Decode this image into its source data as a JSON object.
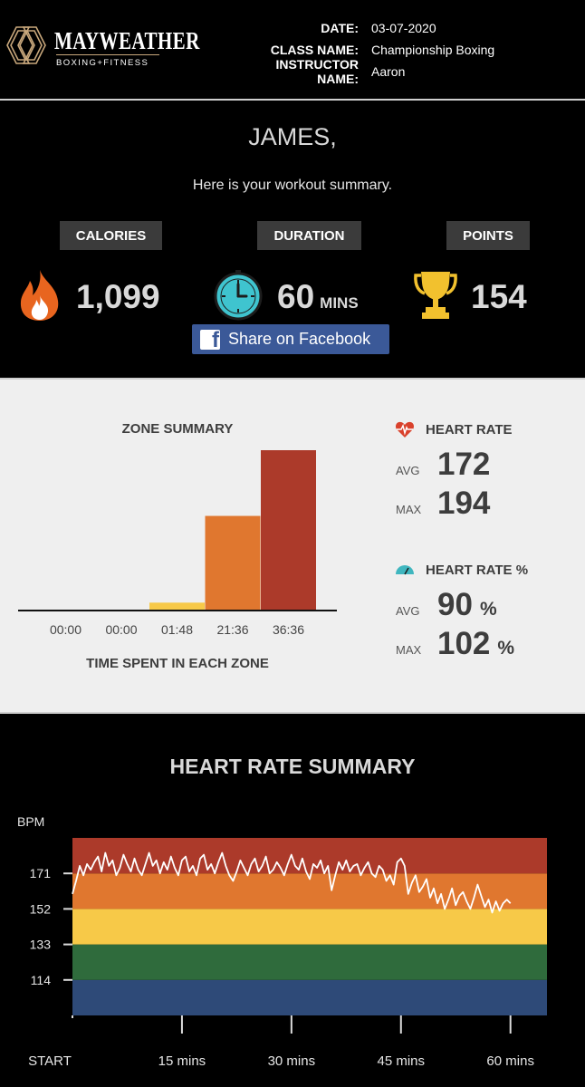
{
  "header": {
    "brand": {
      "name": "MAYWEATHER",
      "tagline": "BOXING+FITNESS"
    },
    "meta": [
      {
        "label": "DATE:",
        "value": "03-07-2020"
      },
      {
        "label": "CLASS NAME:",
        "value": "Championship Boxing"
      },
      {
        "label": "INSTRUCTOR NAME:",
        "value": "Aaron"
      }
    ]
  },
  "summary": {
    "greeting": "JAMES,",
    "intro": "Here is your workout summary.",
    "stats": [
      {
        "label": "CALORIES",
        "value": "1,099",
        "unit": "",
        "icon": "flame-icon",
        "color": "#e8651f"
      },
      {
        "label": "DURATION",
        "value": "60",
        "unit": "MINS",
        "icon": "clock-icon",
        "color": "#3fc4cf"
      },
      {
        "label": "POINTS",
        "value": "154",
        "unit": "",
        "icon": "trophy-icon",
        "color": "#f2c12e"
      }
    ],
    "share_label": "Share on Facebook"
  },
  "zone_summary": {
    "title": "ZONE SUMMARY",
    "caption": "TIME SPENT IN EACH ZONE",
    "heart_rate": {
      "title": "HEART RATE",
      "avg_label": "AVG",
      "avg": "172",
      "max_label": "MAX",
      "max": "194"
    },
    "heart_rate_pct": {
      "title": "HEART RATE %",
      "avg_label": "AVG",
      "avg": "90",
      "avg_unit": "%",
      "max_label": "MAX",
      "max": "102",
      "max_unit": "%"
    }
  },
  "chart_data": [
    {
      "type": "bar",
      "title": "ZONE SUMMARY",
      "xlabel": "TIME SPENT IN EACH ZONE",
      "ylabel": "",
      "categories": [
        "00:00",
        "00:00",
        "01:48",
        "21:36",
        "36:36"
      ],
      "values": [
        0,
        0,
        1.8,
        21.6,
        36.6
      ],
      "value_unit": "minutes",
      "ylim": [
        0,
        36.6
      ],
      "colors": [
        "#3e5a8f",
        "#2f6b3c",
        "#f7c948",
        "#e0772f",
        "#ac3a2a"
      ],
      "grid": false,
      "legend": "none"
    },
    {
      "type": "line",
      "title": "HEART RATE SUMMARY",
      "ylabel": "BPM",
      "xlabel": "",
      "x_ticks": [
        "START",
        "15 mins",
        "30 mins",
        "45 mins",
        "60 mins"
      ],
      "x_tick_values": [
        0,
        15,
        30,
        45,
        60
      ],
      "y_ticks": [
        114,
        133,
        152,
        171
      ],
      "xlim": [
        0,
        65
      ],
      "ylim": [
        95,
        190
      ],
      "zones": [
        {
          "from": 95,
          "to": 114,
          "color": "#2e4a78"
        },
        {
          "from": 114,
          "to": 133,
          "color": "#2f6b3c"
        },
        {
          "from": 133,
          "to": 152,
          "color": "#f7c948"
        },
        {
          "from": 152,
          "to": 171,
          "color": "#e0772f"
        },
        {
          "from": 171,
          "to": 190,
          "color": "#ac3a2a"
        }
      ],
      "line_color": "#ffffff",
      "grid": false,
      "legend": "none",
      "x": [
        0,
        0.5,
        1,
        1.5,
        2,
        2.5,
        3,
        3.5,
        4,
        4.5,
        5,
        5.5,
        6,
        6.5,
        7,
        7.5,
        8,
        8.5,
        9,
        9.5,
        10,
        10.5,
        11,
        11.5,
        12,
        12.5,
        13,
        13.5,
        14,
        14.5,
        15,
        15.5,
        16,
        16.5,
        17,
        17.5,
        18,
        18.5,
        19,
        19.5,
        20,
        20.5,
        21,
        21.5,
        22,
        22.5,
        23,
        23.5,
        24,
        24.5,
        25,
        25.5,
        26,
        26.5,
        27,
        27.5,
        28,
        28.5,
        29,
        29.5,
        30,
        30.5,
        31,
        31.5,
        32,
        32.5,
        33,
        33.5,
        34,
        34.5,
        35,
        35.5,
        36,
        36.5,
        37,
        37.5,
        38,
        38.5,
        39,
        39.5,
        40,
        40.5,
        41,
        41.5,
        42,
        42.5,
        43,
        43.5,
        44,
        44.5,
        45,
        45.5,
        46,
        46.5,
        47,
        47.5,
        48,
        48.5,
        49,
        49.5,
        50,
        50.5,
        51,
        51.5,
        52,
        52.5,
        53,
        53.5,
        54,
        54.5,
        55,
        55.5,
        56,
        56.5,
        57,
        57.5,
        58,
        58.5,
        59,
        59.5,
        60
      ],
      "y": [
        160,
        167,
        175,
        170,
        176,
        173,
        177,
        180,
        172,
        182,
        175,
        178,
        170,
        174,
        181,
        176,
        172,
        179,
        173,
        170,
        176,
        182,
        175,
        178,
        171,
        177,
        173,
        180,
        174,
        170,
        178,
        180,
        172,
        175,
        170,
        179,
        181,
        173,
        176,
        171,
        177,
        182,
        175,
        170,
        167,
        172,
        178,
        174,
        170,
        176,
        179,
        172,
        175,
        180,
        171,
        173,
        177,
        174,
        170,
        176,
        181,
        175,
        173,
        179,
        172,
        168,
        176,
        174,
        178,
        171,
        175,
        162,
        170,
        177,
        173,
        178,
        172,
        175,
        176,
        170,
        174,
        177,
        171,
        169,
        175,
        173,
        167,
        170,
        165,
        177,
        179,
        175,
        160,
        166,
        170,
        161,
        164,
        168,
        158,
        163,
        155,
        160,
        152,
        157,
        163,
        154,
        159,
        161,
        156,
        152,
        158,
        165,
        159,
        153,
        157,
        150,
        156,
        151,
        155,
        157,
        155
      ]
    }
  ],
  "heart_rate_summary": {
    "title": "HEART RATE SUMMARY",
    "y_unit": "BPM"
  }
}
